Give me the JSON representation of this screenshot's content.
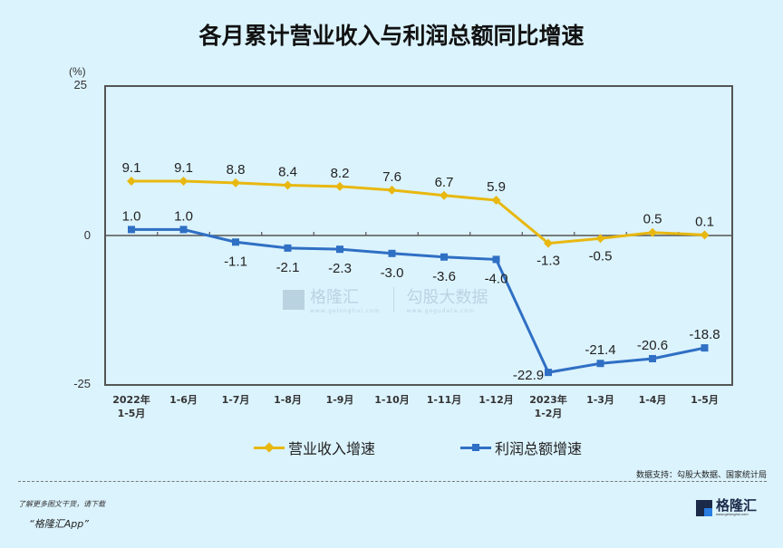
{
  "title": "各月累计营业收入与利润总额同比增速",
  "y_unit": "(%)",
  "y_ticks": [
    "25",
    "0",
    "-25"
  ],
  "x_labels": [
    [
      "2022年",
      "1-5月"
    ],
    [
      "1-6月"
    ],
    [
      "1-7月"
    ],
    [
      "1-8月"
    ],
    [
      "1-9月"
    ],
    [
      "1-10月"
    ],
    [
      "1-11月"
    ],
    [
      "1-12月"
    ],
    [
      "2023年",
      "1-2月"
    ],
    [
      "1-3月"
    ],
    [
      "1-4月"
    ],
    [
      "1-5月"
    ]
  ],
  "legend": {
    "revenue": "营业收入增速",
    "profit": "利润总额增速"
  },
  "colors": {
    "revenue": "#e8b80f",
    "profit": "#2f6fc4",
    "background": "#dbf3fd"
  },
  "source": "数据支持：勾股大数据、国家统计局",
  "promo": {
    "line1": "了解更多图文干货，请下载",
    "line2": "“格隆汇App”"
  },
  "logo": {
    "name": "格隆汇",
    "url": "www.gelonghui.com"
  },
  "watermark": {
    "brand1": "格隆汇",
    "brand1_url": "www.gelonghui.com",
    "brand2": "勾股大数据",
    "brand2_url": "www.gogudata.com"
  },
  "chart_data": {
    "type": "line",
    "title": "各月累计营业收入与利润总额同比增速",
    "ylabel": "(%)",
    "xlabel": "",
    "ylim": [
      -25,
      25
    ],
    "grid": false,
    "legend_position": "bottom",
    "categories": [
      "2022年1-5月",
      "1-6月",
      "1-7月",
      "1-8月",
      "1-9月",
      "1-10月",
      "1-11月",
      "1-12月",
      "2023年1-2月",
      "1-3月",
      "1-4月",
      "1-5月"
    ],
    "series": [
      {
        "name": "营业收入增速",
        "color": "#e8b80f",
        "marker": "diamond",
        "values": [
          9.1,
          9.1,
          8.8,
          8.4,
          8.2,
          7.6,
          6.7,
          5.9,
          -1.3,
          -0.5,
          0.5,
          0.1
        ]
      },
      {
        "name": "利润总额增速",
        "color": "#2f6fc4",
        "marker": "square",
        "values": [
          1.0,
          1.0,
          -1.1,
          -2.1,
          -2.3,
          -3.0,
          -3.6,
          -4.0,
          -22.9,
          -21.4,
          -20.6,
          -18.8
        ]
      }
    ]
  }
}
